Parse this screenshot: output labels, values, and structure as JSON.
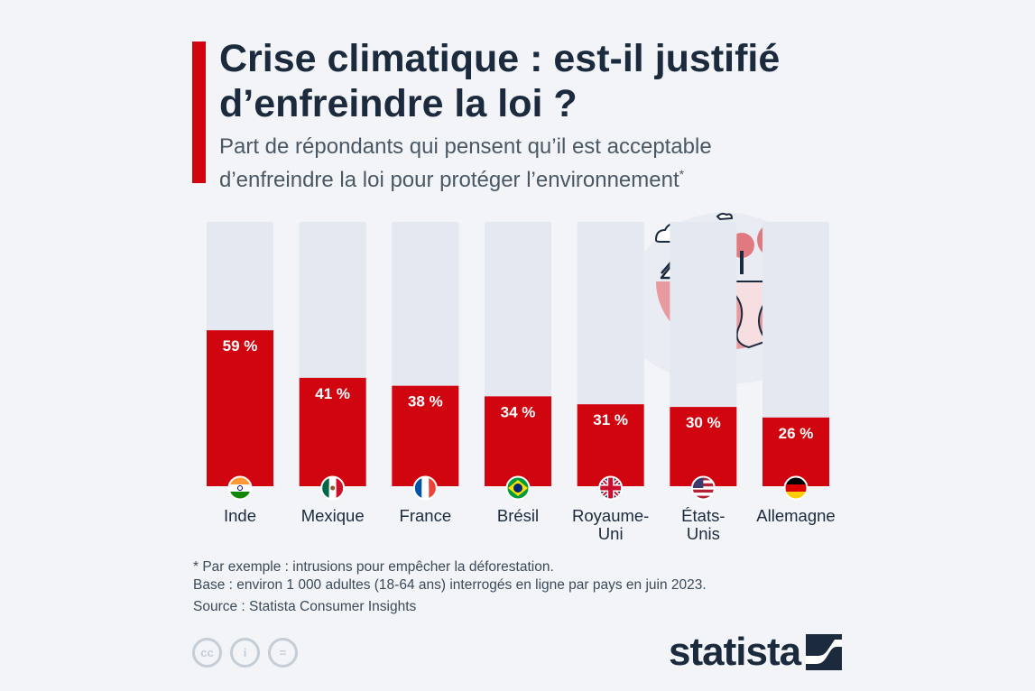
{
  "header": {
    "title": "Crise climatique : est-il justifié\nd’enfreindre la loi ?",
    "subtitle": "Part de répondants qui pensent qu’il est acceptable\nd’enfreindre la loi pour protéger l’environnement",
    "subtitle_mark": "*"
  },
  "chart_data": {
    "type": "bar",
    "categories": [
      "Inde",
      "Mexique",
      "France",
      "Brésil",
      "Royaume-Uni",
      "États-Unis",
      "Allemagne"
    ],
    "category_lines": [
      [
        "Inde"
      ],
      [
        "Mexique"
      ],
      [
        "France"
      ],
      [
        "Brésil"
      ],
      [
        "Royaume-",
        "Uni"
      ],
      [
        "États-",
        "Unis"
      ],
      [
        "Allemagne"
      ]
    ],
    "values": [
      59,
      41,
      38,
      34,
      31,
      30,
      26
    ],
    "value_labels": [
      "59 %",
      "41 %",
      "38 %",
      "34 %",
      "31 %",
      "30 %",
      "26 %"
    ],
    "ylim": [
      0,
      100
    ],
    "bar_color": "#d1050f",
    "track_color": "#e4e8f0",
    "flags": [
      "india-flag",
      "mexico-flag",
      "france-flag",
      "brazil-flag",
      "uk-flag",
      "usa-flag",
      "germany-flag"
    ]
  },
  "footer": {
    "note": "* Par exemple : intrusions pour empêcher la déforestation.",
    "base": "Base : environ 1 000 adultes (18-64 ans) interrogés en ligne par pays en juin 2023.",
    "source": "Source : Statista Consumer Insights",
    "cc_labels": [
      "cc",
      "i",
      "="
    ],
    "brand": "statista"
  },
  "colors": {
    "accent": "#d1050f",
    "title": "#1b2a3d",
    "background": "#f2f4f8",
    "illustration_pink": "#e89a9e"
  }
}
